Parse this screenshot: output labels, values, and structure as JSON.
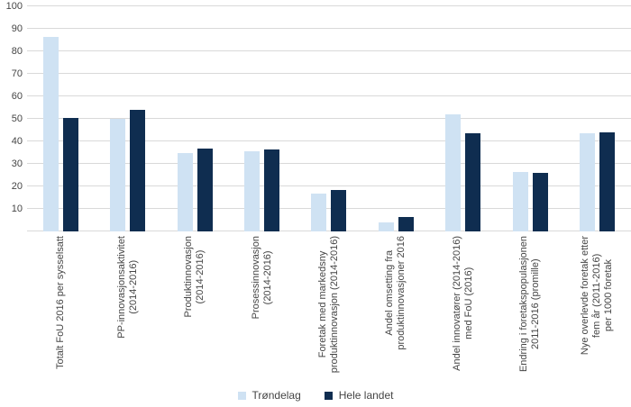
{
  "chart_data": {
    "type": "bar",
    "title": "",
    "xlabel": "",
    "ylabel": "",
    "ylim": [
      0,
      100
    ],
    "ytick_step": 10,
    "ytick_labels": [
      "10",
      "20",
      "30",
      "40",
      "50",
      "60",
      "70",
      "80",
      "90",
      "100"
    ],
    "grid": true,
    "legend_position": "bottom",
    "categories": [
      "Totalt FoU 2016 per sysselsatt",
      "PP-innovasjonsaktivitet\n(2014-2016)",
      "Produktinnovasjon\n(2014-2016)",
      "Prosessinnovasjon\n(2014-2016)",
      "Foretak med markedsny\nproduktinnovasjon (2014-2016)",
      "Andel omsetting fra\nproduktinnovasjoner 2016",
      "Andel innovatører (2014-2016)\nmed FoU (2016)",
      "Endring i foretakspopulasjonen\n2011-2016 (promille)",
      "Nye overlevde foretak etter\nfem år (2011-2016)\nper 1000 foretak"
    ],
    "series": [
      {
        "name": "Trøndelag",
        "color": "#cfe2f3",
        "values": [
          86.5,
          50,
          35,
          35.5,
          17,
          4,
          52,
          26.5,
          43.5
        ]
      },
      {
        "name": "Hele landet",
        "color": "#0f2d50",
        "values": [
          50.5,
          54,
          37,
          36.5,
          18.5,
          6.5,
          43.5,
          26,
          44
        ]
      }
    ]
  },
  "colors": {
    "gridline": "#d9d9d9",
    "text": "#454545",
    "background": "#ffffff"
  }
}
